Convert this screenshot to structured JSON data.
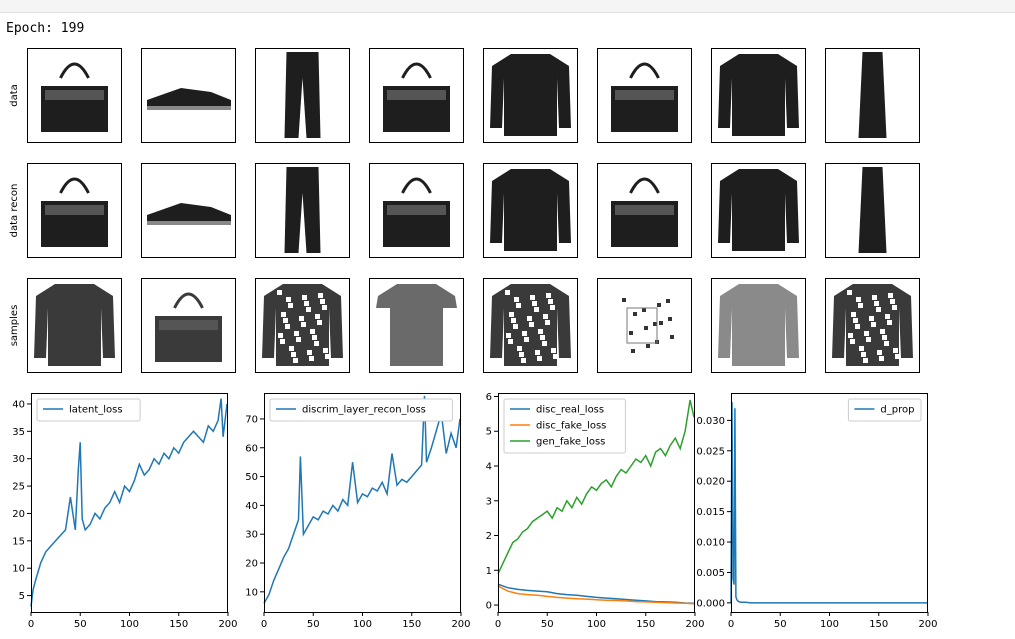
{
  "output": {
    "epoch_text": "Epoch: 199"
  },
  "image_grid": {
    "row_labels": [
      "data",
      "data recon",
      "samples"
    ],
    "columns": 8,
    "items": [
      [
        "bag",
        "sneaker",
        "trouser",
        "bag",
        "pullover",
        "bag",
        "pullover",
        "dress"
      ],
      [
        "bag",
        "sneaker",
        "trouser",
        "bag",
        "pullover",
        "bag",
        "pullover",
        "dress"
      ],
      [
        "coat",
        "bag",
        "shirt",
        "t-shirt",
        "shirt",
        "sandal",
        "coat",
        "shirt"
      ]
    ]
  },
  "chart_data": [
    {
      "type": "line",
      "xlim": [
        0,
        199
      ],
      "ylim": [
        2,
        42
      ],
      "xticks": [
        0,
        50,
        100,
        150,
        200
      ],
      "yticks": [
        5,
        10,
        15,
        20,
        25,
        30,
        35,
        40
      ],
      "legend_position": "top-left",
      "series": [
        {
          "name": "latent_loss",
          "color": "#1f77b4",
          "x": [
            0,
            2,
            5,
            10,
            15,
            20,
            25,
            30,
            35,
            40,
            45,
            48,
            50,
            52,
            55,
            60,
            65,
            70,
            75,
            80,
            85,
            90,
            95,
            100,
            105,
            110,
            115,
            120,
            125,
            130,
            135,
            140,
            145,
            150,
            155,
            160,
            165,
            170,
            175,
            180,
            185,
            190,
            193,
            195,
            199
          ],
          "values": [
            3,
            6,
            8,
            11,
            13,
            14,
            15,
            16,
            17,
            23,
            17,
            28,
            33,
            19,
            17,
            18,
            20,
            19,
            21,
            22,
            24,
            22,
            25,
            24,
            26,
            29,
            27,
            28,
            30,
            29,
            31,
            30,
            32,
            31,
            33,
            34,
            35,
            34,
            33,
            36,
            35,
            37,
            41,
            34,
            40
          ]
        }
      ]
    },
    {
      "type": "line",
      "xlim": [
        0,
        199
      ],
      "ylim": [
        3,
        79
      ],
      "xticks": [
        0,
        50,
        100,
        150,
        200
      ],
      "yticks": [
        10,
        20,
        30,
        40,
        50,
        60,
        70,
        80
      ],
      "legend_position": "top-left",
      "series": [
        {
          "name": "discrim_layer_recon_loss",
          "color": "#1f77b4",
          "x": [
            0,
            5,
            10,
            15,
            20,
            25,
            30,
            35,
            37,
            40,
            45,
            50,
            55,
            60,
            65,
            70,
            75,
            80,
            85,
            90,
            95,
            100,
            105,
            110,
            115,
            120,
            125,
            130,
            135,
            140,
            145,
            150,
            155,
            160,
            163,
            165,
            170,
            175,
            180,
            185,
            190,
            195,
            199
          ],
          "values": [
            6,
            9,
            14,
            18,
            22,
            25,
            30,
            35,
            57,
            30,
            33,
            36,
            35,
            38,
            37,
            40,
            38,
            42,
            40,
            55,
            41,
            44,
            43,
            46,
            45,
            48,
            44,
            58,
            47,
            49,
            48,
            50,
            52,
            54,
            78,
            55,
            60,
            66,
            72,
            58,
            65,
            60,
            70
          ]
        }
      ]
    },
    {
      "type": "line",
      "xlim": [
        0,
        199
      ],
      "ylim": [
        -0.2,
        6.1
      ],
      "xticks": [
        0,
        50,
        100,
        150,
        200
      ],
      "yticks": [
        0,
        1,
        2,
        3,
        4,
        5,
        6
      ],
      "legend_position": "top-left",
      "series": [
        {
          "name": "disc_real_loss",
          "color": "#1f77b4",
          "x": [
            0,
            10,
            20,
            30,
            40,
            50,
            60,
            70,
            80,
            90,
            100,
            110,
            120,
            130,
            140,
            150,
            160,
            170,
            180,
            190,
            199
          ],
          "values": [
            0.6,
            0.5,
            0.45,
            0.42,
            0.4,
            0.38,
            0.33,
            0.3,
            0.28,
            0.25,
            0.22,
            0.2,
            0.18,
            0.16,
            0.14,
            0.12,
            0.1,
            0.09,
            0.08,
            0.06,
            0.05
          ]
        },
        {
          "name": "disc_fake_loss",
          "color": "#ff7f0e",
          "x": [
            0,
            10,
            20,
            30,
            40,
            50,
            60,
            70,
            80,
            90,
            100,
            110,
            120,
            130,
            140,
            150,
            160,
            170,
            180,
            190,
            199
          ],
          "values": [
            0.55,
            0.4,
            0.33,
            0.3,
            0.28,
            0.25,
            0.22,
            0.2,
            0.18,
            0.17,
            0.15,
            0.14,
            0.13,
            0.12,
            0.1,
            0.09,
            0.08,
            0.07,
            0.06,
            0.05,
            0.04
          ]
        },
        {
          "name": "gen_fake_loss",
          "color": "#2ca02c",
          "x": [
            0,
            5,
            10,
            15,
            20,
            25,
            30,
            35,
            40,
            45,
            50,
            55,
            60,
            65,
            70,
            75,
            80,
            85,
            90,
            95,
            100,
            105,
            110,
            115,
            120,
            125,
            130,
            135,
            140,
            145,
            150,
            155,
            160,
            165,
            170,
            175,
            180,
            185,
            190,
            195,
            199
          ],
          "values": [
            0.9,
            1.2,
            1.5,
            1.8,
            1.9,
            2.1,
            2.2,
            2.4,
            2.5,
            2.6,
            2.7,
            2.5,
            2.8,
            2.7,
            3.0,
            2.8,
            3.1,
            2.9,
            3.2,
            3.4,
            3.3,
            3.5,
            3.6,
            3.4,
            3.7,
            3.9,
            3.8,
            4.0,
            4.2,
            4.1,
            4.3,
            4.0,
            4.4,
            4.5,
            4.3,
            4.6,
            4.8,
            4.5,
            5.0,
            5.9,
            5.4
          ]
        }
      ]
    },
    {
      "type": "line",
      "xlim": [
        0,
        199
      ],
      "ylim": [
        -0.0015,
        0.0345
      ],
      "xticks": [
        0,
        50,
        100,
        150,
        200
      ],
      "yticks": [
        0.0,
        0.005,
        0.01,
        0.015,
        0.02,
        0.025,
        0.03
      ],
      "ytick_labels": [
        "0.000",
        "0.005",
        "0.010",
        "0.015",
        "0.020",
        "0.025",
        "0.030"
      ],
      "legend_position": "top-right",
      "series": [
        {
          "name": "d_prop",
          "color": "#1f77b4",
          "x": [
            0,
            1,
            2,
            3,
            4,
            5,
            6,
            7,
            8,
            10,
            15,
            20,
            30,
            50,
            100,
            150,
            199
          ],
          "values": [
            0.0,
            0.033,
            0.004,
            0.003,
            0.032,
            0.001,
            0.0005,
            0.0003,
            0.0002,
            0.0001,
            0.0001,
            0.0,
            0.0,
            0.0,
            0.0,
            0.0,
            0.0
          ]
        }
      ]
    }
  ]
}
